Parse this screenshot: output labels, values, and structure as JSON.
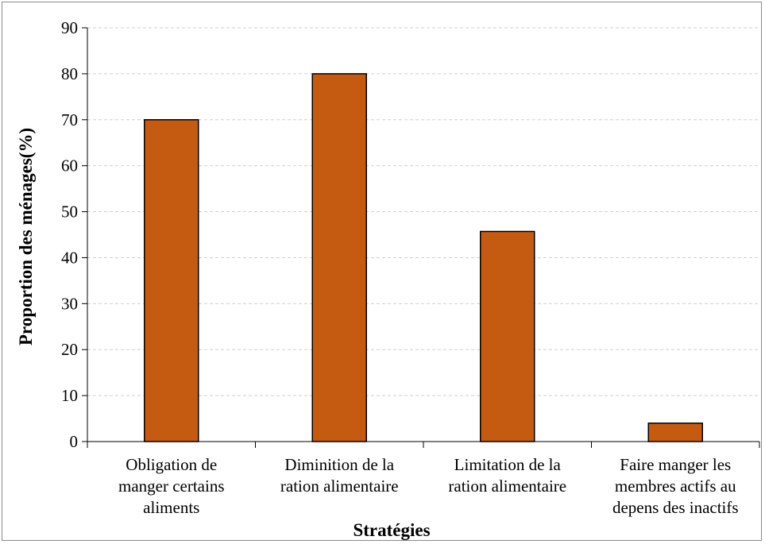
{
  "chart_data": {
    "type": "bar",
    "categories": [
      [
        "Obligation de",
        "manger certains",
        "aliments"
      ],
      [
        "Diminition de la",
        "ration alimentaire"
      ],
      [
        "Limitation de la",
        "ration alimentaire"
      ],
      [
        "Faire manger les",
        "membres actifs au",
        "depens des inactifs"
      ]
    ],
    "values": [
      70,
      80,
      45.7,
      4
    ],
    "xlabel": "Stratégies",
    "ylabel": "Proportion des ménages(%)",
    "ylim": [
      0,
      90
    ],
    "yticks": [
      0,
      10,
      20,
      30,
      40,
      50,
      60,
      70,
      80,
      90
    ],
    "grid": true,
    "bar_color": "#c55a11",
    "bar_edge_color": "#000000",
    "grid_color": "#d0d0d0"
  }
}
